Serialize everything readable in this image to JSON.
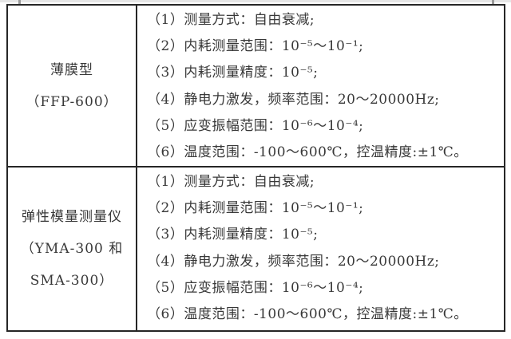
{
  "page": {
    "background": "#ffffff",
    "border_color": "#262626",
    "text_color": "#383838"
  },
  "table": {
    "rows": [
      {
        "device_lines": [
          "薄膜型",
          "（FFP-600）"
        ],
        "spec_lines": [
          "（1）测量方式：自由衰减;",
          "（2）内耗测量范围：10⁻⁵～10⁻¹;",
          "（3）内耗测量精度：10⁻⁵;",
          "（4）静电力激发，频率范围：20～20000Hz;",
          "（5）应变振幅范围：10⁻⁶～10⁻⁴;",
          "（6）温度范围：-100～600℃，控温精度:±1℃。"
        ]
      },
      {
        "device_lines": [
          "弹性模量测量仪",
          "（YMA-300 和",
          "SMA-300）"
        ],
        "spec_lines": [
          "（1）测量方式：自由衰减;",
          "（2）内耗测量范围：10⁻⁵～10⁻¹;",
          "（3）内耗测量精度：10⁻⁵;",
          "（4）静电力激发，频率范围：20～20000Hz;",
          "（5）应变振幅范围：10⁻⁶～10⁻⁴;",
          "（6）温度范围：-100～600℃，控温精度:±1℃。"
        ]
      }
    ]
  }
}
